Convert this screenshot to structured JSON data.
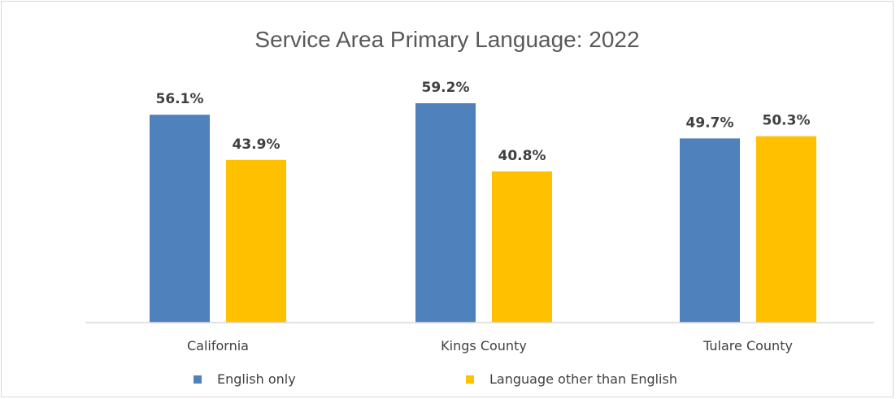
{
  "chart_data": {
    "type": "bar",
    "title": "Service Area Primary Language: 2022",
    "categories": [
      "California",
      "Kings County",
      "Tulare County"
    ],
    "series": [
      {
        "name": "English only",
        "color": "#4f81bd",
        "values": [
          56.1,
          59.2,
          49.7
        ],
        "labels": [
          "56.1%",
          "59.2%",
          "49.7%"
        ]
      },
      {
        "name": "Language other than English",
        "color": "#ffc000",
        "values": [
          43.9,
          40.8,
          50.3
        ],
        "labels": [
          "43.9%",
          "40.8%",
          "50.3%"
        ]
      }
    ],
    "ylim": [
      0,
      70
    ],
    "grid": false,
    "legend_position": "bottom"
  }
}
